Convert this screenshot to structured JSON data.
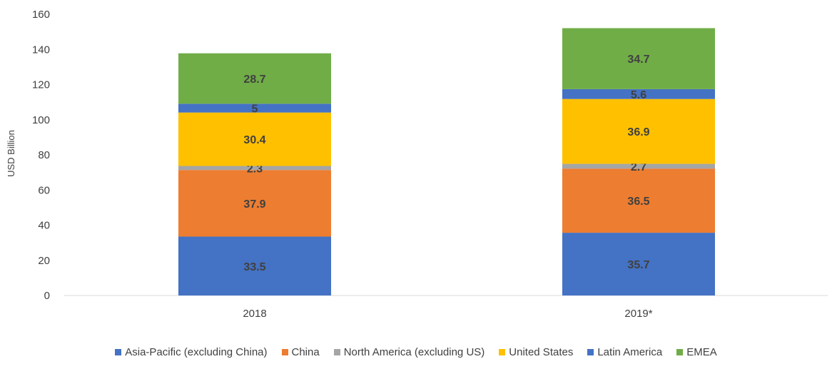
{
  "chart_data": {
    "type": "bar",
    "stacked": true,
    "categories": [
      "2018",
      "2019*"
    ],
    "ylabel": "USD Billion",
    "ylim": [
      0,
      160
    ],
    "yticks": [
      0,
      20,
      40,
      60,
      80,
      100,
      120,
      140,
      160
    ],
    "grid": false,
    "legend_position": "bottom",
    "series": [
      {
        "name": "Asia-Pacific (excluding China)",
        "color": "#4472C4",
        "values": [
          33.5,
          35.7
        ]
      },
      {
        "name": "China",
        "color": "#ED7D31",
        "values": [
          37.9,
          36.5
        ]
      },
      {
        "name": "North America (excluding US)",
        "color": "#A5A5A5",
        "values": [
          2.3,
          2.7
        ]
      },
      {
        "name": "United States",
        "color": "#FFC000",
        "values": [
          30.4,
          36.9
        ]
      },
      {
        "name": "Latin America",
        "color": "#4472C4",
        "values": [
          5,
          5.6
        ]
      },
      {
        "name": "EMEA",
        "color": "#70AD47",
        "values": [
          28.7,
          34.7
        ]
      }
    ]
  }
}
